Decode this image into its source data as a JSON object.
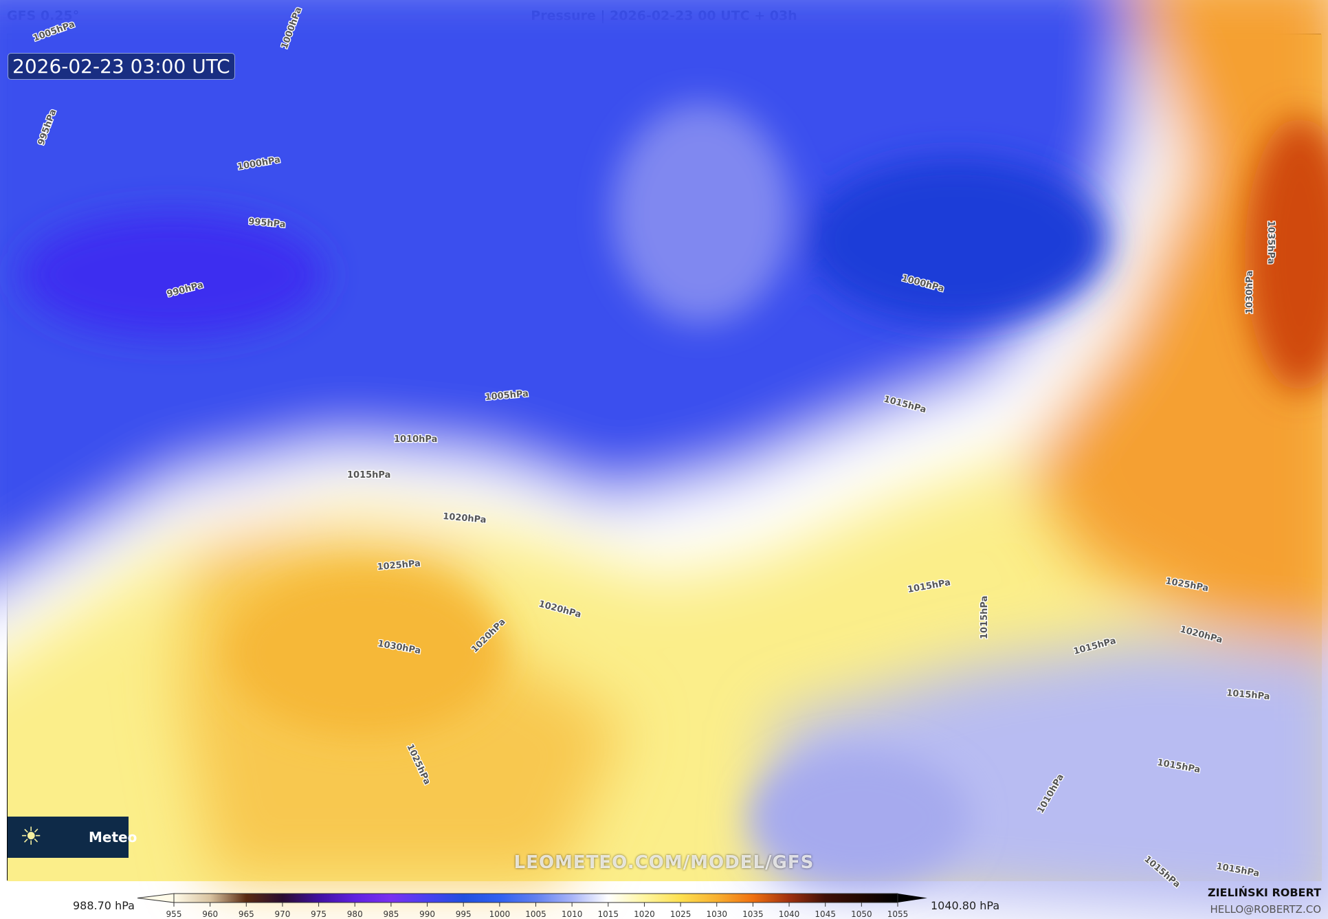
{
  "header": {
    "model": "GFS 0.25°",
    "title": "Pressure | 2026-02-23 00 UTC + 03h"
  },
  "map": {
    "timestamp": "2026-02-23 03:00 UTC",
    "watermark": "LEOMETEO.COM/MODEL/GFS",
    "logo": {
      "icon": "sun-icon",
      "text": "Meteo"
    },
    "isobar_labels": [
      "1005hPa",
      "1000hPa",
      "995hPa",
      "1000hPa",
      "995hPa",
      "990hPa",
      "1005hPa",
      "1010hPa",
      "1015hPa",
      "1020hPa",
      "1025hPa",
      "1030hPa",
      "1020hPa",
      "1020hPa",
      "1025hPa",
      "1015hPa",
      "1000hPa",
      "1035hPa",
      "1030hPa",
      "1025hPa",
      "1020hPa",
      "1015hPa",
      "1015hPa",
      "1015hPa",
      "1015hPa",
      "1015hPa",
      "1010hPa",
      "1015hPa",
      "1015hPa"
    ],
    "colors": {
      "low": "#2a44ec",
      "mid": "#ffffff",
      "high": "#fbe66a",
      "very_high": "#ee6a10",
      "lavender": "#aab0f0"
    }
  },
  "colorbar": {
    "min_label": "988.70 hPa",
    "max_label": "1040.80 hPa",
    "ticks": [
      "955",
      "960",
      "965",
      "970",
      "975",
      "980",
      "985",
      "990",
      "995",
      "1000",
      "1005",
      "1010",
      "1015",
      "1020",
      "1025",
      "1030",
      "1035",
      "1040",
      "1045",
      "1050",
      "1055"
    ],
    "colors": [
      "#fffbe8",
      "#d9c3a0",
      "#5a2a10",
      "#2a0c30",
      "#4010a0",
      "#6020e0",
      "#7a30f0",
      "#4a40f0",
      "#2050e0",
      "#3060f0",
      "#6080f0",
      "#a8b4f8",
      "#ffffff",
      "#fff5a0",
      "#fde050",
      "#f8b030",
      "#f07010",
      "#a03010",
      "#401008",
      "#200800",
      "#000000"
    ]
  },
  "footer": {
    "author": "ZIELIŃSKI ROBERT",
    "email": "HELLO@ROBERTZ.CO"
  }
}
